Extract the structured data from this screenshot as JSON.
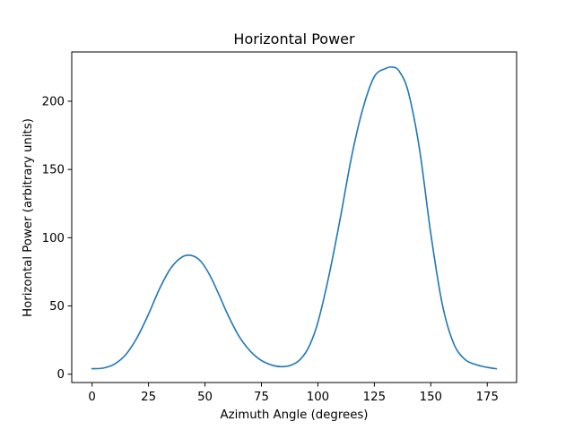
{
  "chart_data": {
    "type": "line",
    "title": "Horizontal Power",
    "xlabel": "Azimuth Angle (degrees)",
    "ylabel": "Horizontal Power (arbitrary units)",
    "xlim": [
      -9,
      188
    ],
    "ylim": [
      -6.1,
      236.1
    ],
    "xticks": [
      0,
      25,
      50,
      75,
      100,
      125,
      150,
      175
    ],
    "yticks": [
      0,
      50,
      100,
      150,
      200
    ],
    "grid": false,
    "legend": "none",
    "series": [
      {
        "color": "#1f77b4",
        "x": [
          0,
          5,
          10,
          15,
          20,
          25,
          30,
          35,
          40,
          44,
          48,
          52,
          56,
          60,
          65,
          70,
          75,
          80,
          84,
          88,
          92,
          96,
          100,
          105,
          110,
          115,
          120,
          125,
          130,
          133,
          136,
          140,
          145,
          150,
          155,
          160,
          165,
          170,
          175,
          179
        ],
        "y": [
          4,
          4.5,
          7.5,
          14.5,
          27,
          44,
          63,
          78,
          86,
          87,
          83,
          73,
          59,
          44,
          28,
          17,
          10,
          6.5,
          5.5,
          6.5,
          10.5,
          20,
          38,
          73,
          115,
          160,
          195,
          218,
          224,
          225,
          222,
          207,
          165,
          103,
          52,
          23,
          11,
          7,
          5,
          4
        ]
      }
    ]
  }
}
